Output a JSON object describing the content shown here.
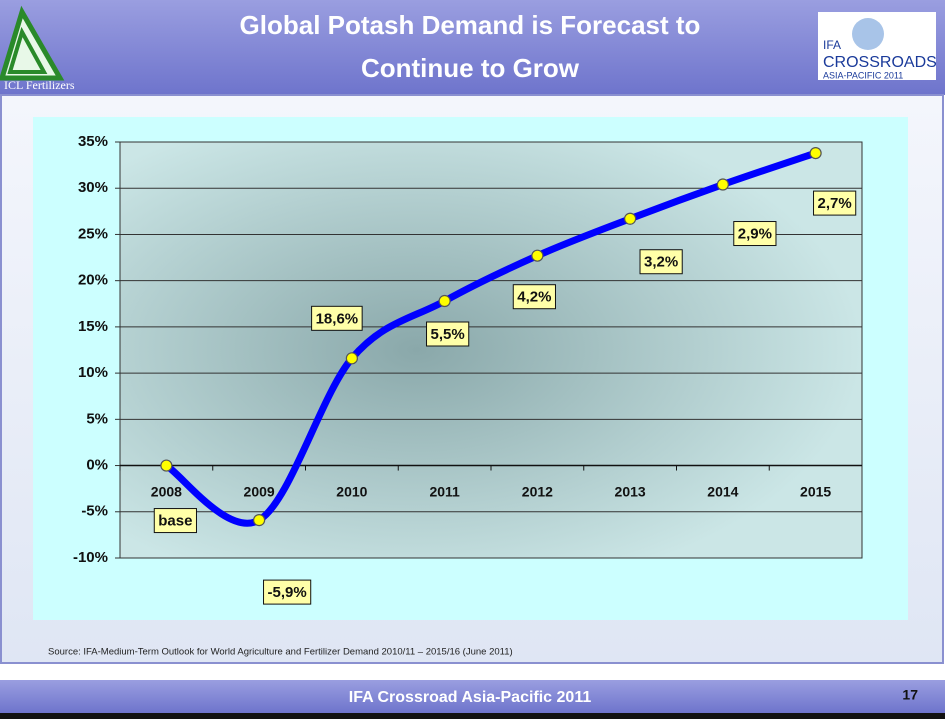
{
  "header": {
    "logo_left": "ICL Fertilizers",
    "logo_right_top": "IFA",
    "logo_right_middle": "CROSSROADS",
    "logo_right_bottom": "ASIA-PACIFIC 2011"
  },
  "chart_data": {
    "type": "line",
    "title": "Global Potash Demand is Forecast to Continue to Grow",
    "categories": [
      "2008",
      "2009",
      "2010",
      "2011",
      "2012",
      "2013",
      "2014",
      "2015"
    ],
    "series": [
      {
        "color": "#0000ff",
        "values": [
          0,
          -5.9,
          11.6,
          17.8,
          22.7,
          26.7,
          30.4,
          33.8
        ]
      }
    ],
    "annotations": [
      "base",
      "-5,9%",
      "18,6%",
      "5,5%",
      "4,2%",
      "3,2%",
      "2,9%",
      "2,7%"
    ],
    "ylim": [
      -10,
      35
    ],
    "yticks": [
      {
        "value": -10,
        "label": "-10%"
      },
      {
        "value": -5,
        "label": "-5%"
      },
      {
        "value": 0,
        "label": "0%"
      },
      {
        "value": 5,
        "label": "5%"
      },
      {
        "value": 10,
        "label": "10%"
      },
      {
        "value": 15,
        "label": "15%"
      },
      {
        "value": 20,
        "label": "20%"
      },
      {
        "value": 25,
        "label": "25%"
      },
      {
        "value": 30,
        "label": "30%"
      },
      {
        "value": 35,
        "label": "35%"
      }
    ],
    "grid": true
  },
  "source": "Source: IFA-Medium-Term Outlook for World Agriculture and Fertilizer Demand 2010/11 – 2015/16 (June 2011)",
  "footer": {
    "text": "IFA Crossroad Asia-Pacific 2011",
    "slide_number": "17"
  }
}
